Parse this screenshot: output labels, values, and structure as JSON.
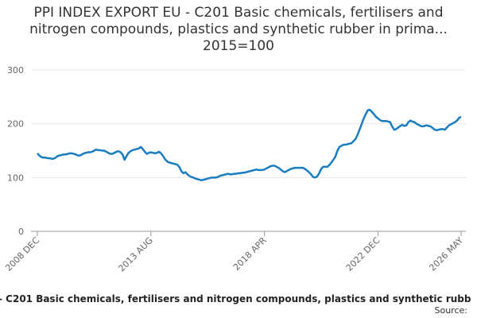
{
  "chart_data": {
    "type": "line",
    "title": "PPI INDEX EXPORT EU - C201 Basic chemicals, fertilisers and nitrogen compounds, plastics and synthetic rubber in prima... 2015=100",
    "categories": [
      "2008 DEC",
      null,
      null,
      null,
      null,
      null,
      null,
      null,
      null,
      null,
      null,
      null,
      null,
      null,
      null,
      null,
      null,
      null,
      null,
      null,
      null,
      null,
      null,
      null,
      null,
      null,
      null,
      null,
      null,
      null,
      null,
      null,
      null,
      null,
      null,
      null,
      null,
      null,
      null,
      null,
      null,
      null,
      null,
      null,
      null,
      null,
      null,
      null,
      null,
      null,
      null,
      null,
      null,
      null,
      null,
      null,
      "2013 AUG",
      null,
      null,
      null,
      null,
      null,
      null,
      null,
      null,
      null,
      null,
      null,
      null,
      null,
      null,
      null,
      null,
      null,
      null,
      null,
      null,
      null,
      null,
      null,
      null,
      null,
      null,
      null,
      null,
      null,
      null,
      null,
      null,
      null,
      null,
      null,
      null,
      null,
      null,
      null,
      null,
      null,
      null,
      null,
      null,
      null,
      null,
      null,
      null,
      null,
      null,
      null,
      null,
      null,
      null,
      null,
      "2018 APR",
      null,
      null,
      null,
      null,
      null,
      null,
      null,
      null,
      null,
      null,
      null,
      null,
      null,
      null,
      null,
      null,
      null,
      null,
      null,
      null,
      null,
      null,
      null,
      null,
      null,
      null,
      null,
      null,
      null,
      null,
      null,
      null,
      null,
      null,
      null,
      null,
      null,
      null,
      null,
      null,
      null,
      null,
      null,
      null,
      null,
      null,
      null,
      null,
      null,
      null,
      null,
      null,
      null,
      null,
      null,
      "2022 DEC",
      null,
      null,
      null,
      null,
      null,
      null,
      null,
      null,
      null,
      null,
      null,
      null,
      null,
      null,
      null,
      null,
      null,
      null,
      null,
      null,
      null,
      null,
      null,
      null,
      null,
      null,
      null,
      null,
      null,
      null,
      null,
      null,
      null,
      null,
      null,
      null,
      null,
      null,
      null,
      null,
      "2026 MAY"
    ],
    "series": [
      {
        "name": "- C201 Basic chemicals, fertilisers and nitrogen compounds, plastics and synthetic rubb",
        "color": "#1a7dc0",
        "values": [
          145,
          141,
          138,
          137,
          137,
          136,
          136,
          135,
          135,
          137,
          140,
          141,
          142,
          143,
          143,
          144,
          145,
          145,
          144,
          143,
          141,
          141,
          143,
          145,
          146,
          147,
          147,
          148,
          150,
          152,
          151,
          151,
          150,
          150,
          148,
          146,
          144,
          144,
          146,
          148,
          149,
          147,
          143,
          133,
          140,
          146,
          149,
          151,
          152,
          153,
          154,
          157,
          153,
          148,
          144,
          146,
          147,
          146,
          145,
          146,
          148,
          145,
          140,
          134,
          130,
          128,
          127,
          126,
          125,
          124,
          120,
          112,
          108,
          110,
          106,
          103,
          101,
          100,
          98,
          97,
          96,
          95,
          96,
          97,
          98,
          99,
          100,
          100,
          100,
          101,
          103,
          104,
          105,
          106,
          107,
          106,
          106,
          107,
          107,
          108,
          108,
          109,
          109,
          110,
          111,
          112,
          113,
          114,
          115,
          114,
          114,
          114,
          115,
          117,
          119,
          121,
          122,
          122,
          120,
          118,
          115,
          112,
          110,
          112,
          114,
          116,
          117,
          118,
          118,
          118,
          118,
          118,
          116,
          113,
          110,
          106,
          101,
          100,
          102,
          108,
          116,
          120,
          120,
          120,
          123,
          128,
          133,
          139,
          150,
          157,
          159,
          161,
          161,
          162,
          163,
          164,
          168,
          172,
          180,
          190,
          200,
          210,
          218,
          225,
          226,
          222,
          218,
          213,
          210,
          207,
          205,
          205,
          205,
          204,
          203,
          195,
          189,
          190,
          193,
          196,
          198,
          196,
          197,
          203,
          206,
          204,
          203,
          200,
          198,
          196,
          195,
          196,
          197,
          196,
          195,
          192,
          189,
          188,
          189,
          190,
          190,
          189,
          193,
          197,
          199,
          201,
          203,
          206,
          211,
          213
        ]
      }
    ],
    "ylim": [
      0,
      300
    ],
    "yticks": [
      0,
      100,
      200,
      300
    ],
    "grid": true,
    "source": "Source:"
  }
}
